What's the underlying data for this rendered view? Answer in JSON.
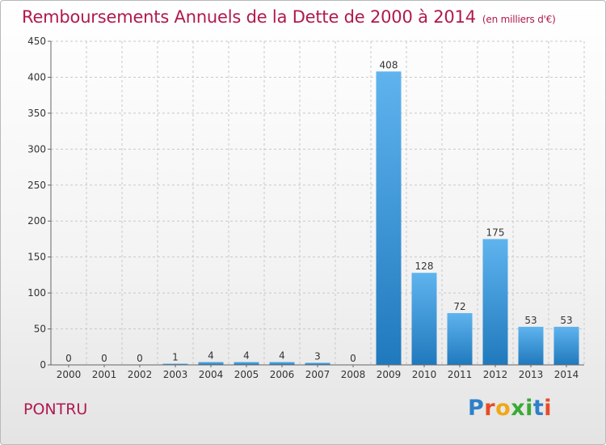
{
  "title": "Remboursements Annuels de la Dette de 2000 à 2014",
  "title_unit": "(en milliers d'€)",
  "commune": "PONTRU",
  "logo": {
    "text": "Proxiti",
    "letter_colors": [
      "#2f80c9",
      "#e94b26",
      "#f0a818",
      "#3aa935",
      "#3aa935",
      "#2f80c9",
      "#e94b26"
    ]
  },
  "colors": {
    "title": "#b0194f",
    "bar_top": "#5fb4ee",
    "bar_bottom": "#2079bd",
    "grid": "#c8c8c8",
    "axis_text": "#333333"
  },
  "chart_data": {
    "type": "bar",
    "categories": [
      "2000",
      "2001",
      "2002",
      "2003",
      "2004",
      "2005",
      "2006",
      "2007",
      "2008",
      "2009",
      "2010",
      "2011",
      "2012",
      "2013",
      "2014"
    ],
    "values": [
      0,
      0,
      0,
      1,
      4,
      4,
      4,
      3,
      0,
      408,
      128,
      72,
      175,
      53,
      53
    ],
    "data_labels": [
      "0",
      "0",
      "0",
      "1",
      "4",
      "4",
      "4",
      "3",
      "0",
      "408",
      "128",
      "72",
      "175",
      "53",
      "53"
    ],
    "ylim": [
      0,
      450
    ],
    "yticks": [
      0,
      50,
      100,
      150,
      200,
      250,
      300,
      350,
      400,
      450
    ],
    "grid": true
  }
}
